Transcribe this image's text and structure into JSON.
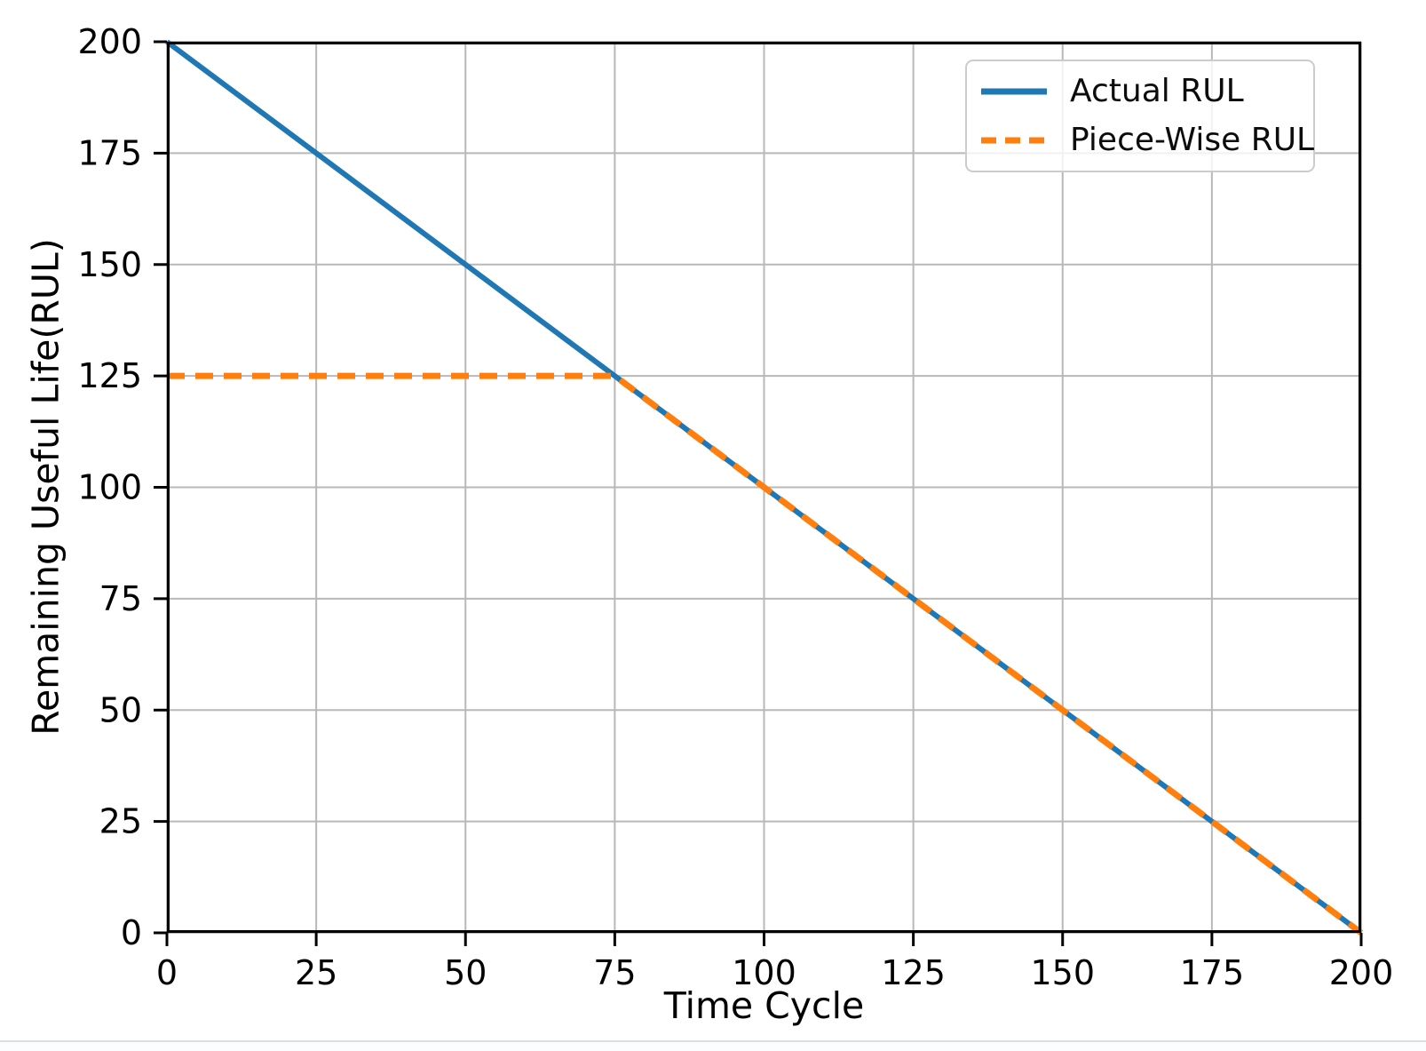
{
  "chart_data": {
    "type": "line",
    "title": "",
    "xlabel": "Time Cycle",
    "ylabel": "Remaining Useful Life(RUL)",
    "xlim": [
      0,
      200
    ],
    "ylim": [
      0,
      200
    ],
    "x_ticks": [
      0,
      25,
      50,
      75,
      100,
      125,
      150,
      175,
      200
    ],
    "y_ticks": [
      0,
      25,
      50,
      75,
      100,
      125,
      150,
      175,
      200
    ],
    "grid": true,
    "legend_position": "upper right",
    "series": [
      {
        "name": "Actual RUL",
        "x": [
          0,
          200
        ],
        "y": [
          200,
          0
        ],
        "color": "#1f77b4",
        "line_style": "solid",
        "line_width": 6
      },
      {
        "name": "Piece-Wise RUL",
        "x": [
          0,
          75,
          200
        ],
        "y": [
          125,
          125,
          0
        ],
        "color": "#ff7f0e",
        "line_style": "dashed",
        "line_width": 7,
        "piecewise_cap": 125,
        "knee_point_x": 75
      }
    ],
    "colors": {
      "grid": "#b8b8b8",
      "spine": "#000000",
      "text": "#000000",
      "legend_border": "#cccccc",
      "background": "#ffffff"
    }
  }
}
